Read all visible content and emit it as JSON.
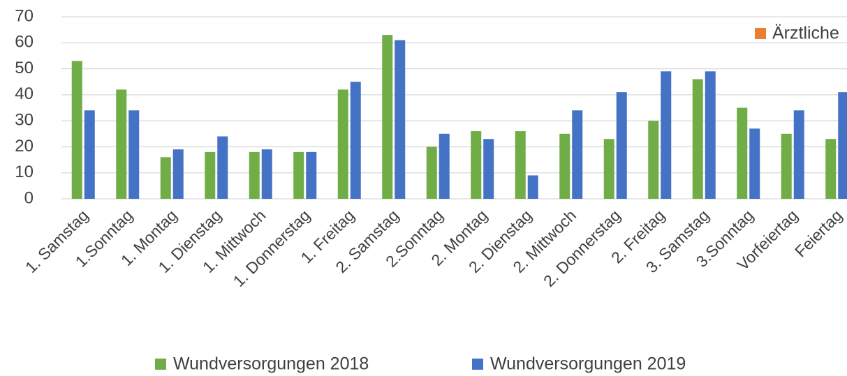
{
  "chart_data": {
    "type": "bar",
    "categories": [
      "1. Samstag",
      "1.Sonntag",
      "1. Montag",
      "1. Dienstag",
      "1. Mittwoch",
      "1. Donnerstag",
      "1. Freitag",
      "2. Samstag",
      "2.Sonntag",
      "2. Montag",
      "2. Dienstag",
      "2. Mittwoch",
      "2. Donnerstag",
      "2. Freitag",
      "3. Samstag",
      "3.Sonntag",
      "Vorfeiertag",
      "Feiertag"
    ],
    "series": [
      {
        "name": "Wundversorgungen 2018",
        "color": "#70ad47",
        "values": [
          53,
          42,
          16,
          18,
          18,
          18,
          42,
          63,
          20,
          26,
          26,
          25,
          23,
          30,
          46,
          35,
          25,
          23
        ]
      },
      {
        "name": "Wundversorgungen 2019",
        "color": "#4472c4",
        "values": [
          34,
          34,
          19,
          24,
          19,
          18,
          45,
          61,
          25,
          23,
          9,
          34,
          41,
          49,
          49,
          27,
          34,
          41
        ]
      }
    ],
    "ylim": [
      0,
      70
    ],
    "yticks": [
      0,
      10,
      20,
      30,
      40,
      50,
      60,
      70
    ],
    "grid": true,
    "legend": "bottom",
    "annotations": [
      {
        "text": "Ärztliche",
        "color": "#ed7d31"
      }
    ]
  }
}
